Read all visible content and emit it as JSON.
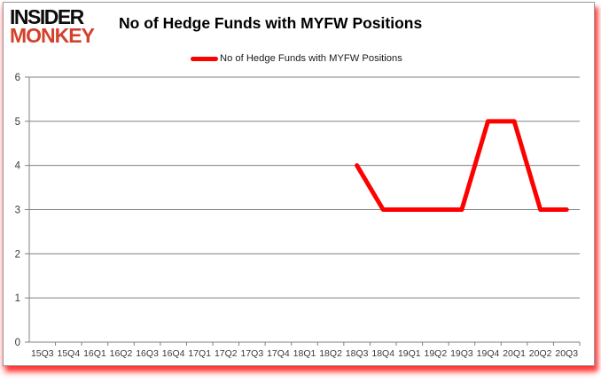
{
  "logo": {
    "line1": "INSIDER",
    "line2": "MONKEY"
  },
  "header": {
    "title": "No of Hedge Funds with MYFW Positions"
  },
  "legend": {
    "label": "No of Hedge Funds with MYFW Positions"
  },
  "colors": {
    "series_line": "#ff0000",
    "logo_red": "#d2422c",
    "grid": "#808080",
    "axis_text": "#3a3a3a",
    "frame_border": "#9a9a9a",
    "shadow_red": "#ff1414"
  },
  "chart_data": {
    "type": "line",
    "title": "No of Hedge Funds with MYFW Positions",
    "xlabel": "",
    "ylabel": "",
    "categories": [
      "15Q3",
      "15Q4",
      "16Q1",
      "16Q2",
      "16Q3",
      "16Q4",
      "17Q1",
      "17Q2",
      "17Q3",
      "17Q4",
      "18Q1",
      "18Q2",
      "18Q3",
      "18Q4",
      "19Q1",
      "19Q2",
      "19Q3",
      "19Q4",
      "20Q1",
      "20Q2",
      "20Q3"
    ],
    "series": [
      {
        "name": "No of Hedge Funds with MYFW Positions",
        "color": "#ff0000",
        "values": [
          null,
          null,
          null,
          null,
          null,
          null,
          null,
          null,
          null,
          null,
          null,
          null,
          4,
          3,
          3,
          3,
          3,
          5,
          5,
          3,
          3
        ]
      }
    ],
    "ylim": [
      0,
      6
    ],
    "yticks": [
      0,
      1,
      2,
      3,
      4,
      5,
      6
    ],
    "grid": true,
    "legend_position": "top-center"
  }
}
